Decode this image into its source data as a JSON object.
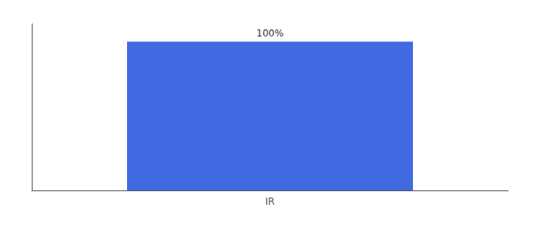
{
  "chart_data": {
    "type": "bar",
    "categories": [
      "IR"
    ],
    "values": [
      100
    ],
    "value_labels": [
      "100%"
    ],
    "data_labels": true,
    "color": "#4169e1",
    "ylim": [
      0,
      112
    ],
    "grid": false,
    "tick_labels": "x"
  }
}
